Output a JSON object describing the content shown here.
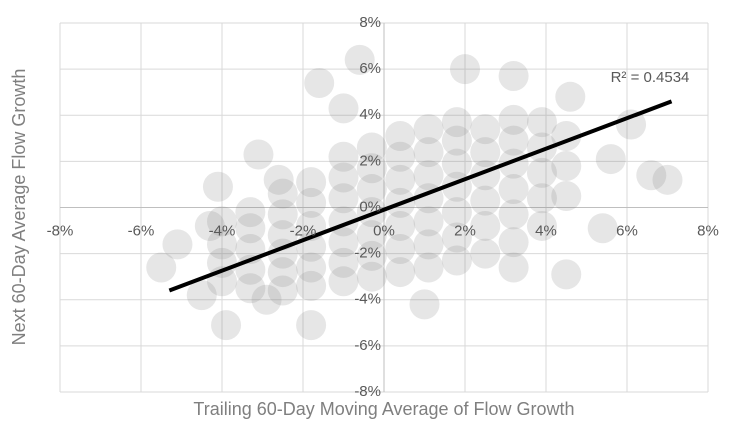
{
  "chart_data": {
    "type": "scatter",
    "x_label": "Trailing 60-Day Moving Average of Flow Growth",
    "y_label": "Next 60-Day Average Flow Growth",
    "annotation": "R² = 0.4534",
    "color": "#808080",
    "grid": true,
    "xlim": [
      -8,
      8
    ],
    "ylim": [
      -8,
      8
    ],
    "xticks": [
      {
        "value": -8,
        "label": "-8%"
      },
      {
        "value": -6,
        "label": "-6%"
      },
      {
        "value": -4,
        "label": "-4%"
      },
      {
        "value": -2,
        "label": "-2%"
      },
      {
        "value": 0,
        "label": "0%"
      },
      {
        "value": 2,
        "label": "2%"
      },
      {
        "value": 4,
        "label": "4%"
      },
      {
        "value": 6,
        "label": "6%"
      },
      {
        "value": 8,
        "label": "8%"
      }
    ],
    "yticks": [
      {
        "value": -8,
        "label": "-8%"
      },
      {
        "value": -6,
        "label": "-6%"
      },
      {
        "value": -4,
        "label": "-4%"
      },
      {
        "value": -2,
        "label": "-2%"
      },
      {
        "value": 0,
        "label": "0%"
      },
      {
        "value": 2,
        "label": "2%"
      },
      {
        "value": 4,
        "label": "4%"
      },
      {
        "value": 6,
        "label": "6%"
      },
      {
        "value": 8,
        "label": "8%"
      }
    ],
    "x": [
      -3.9,
      -5.5,
      -5.1,
      -4.3,
      -4.1,
      -3.1,
      -2.6,
      -1.6,
      -0.6,
      -1.0,
      2.0,
      3.2,
      4.6,
      5.6,
      6.6,
      5.4,
      4.5,
      3.2,
      1.0,
      -1.8,
      -2.9,
      -4.5,
      6.1,
      7.0,
      -4,
      -4,
      -4,
      -4,
      -3.3,
      -3.3,
      -3.3,
      -3.3,
      -3.3,
      -2.5,
      -2.5,
      -2.5,
      -2.5,
      -2.5,
      -2.5,
      -1.8,
      -1.8,
      -1.8,
      -1.8,
      -1.8,
      -1.8,
      -1.0,
      -1.0,
      -1.0,
      -1.0,
      -1.0,
      -1.0,
      -1.0,
      -0.3,
      -0.3,
      -0.3,
      -0.3,
      -0.3,
      -0.3,
      -0.3,
      0.4,
      0.4,
      0.4,
      0.4,
      0.4,
      0.4,
      0.4,
      1.1,
      1.1,
      1.1,
      1.1,
      1.1,
      1.1,
      1.1,
      1.8,
      1.8,
      1.8,
      1.8,
      1.8,
      1.8,
      1.8,
      2.5,
      2.5,
      2.5,
      2.5,
      2.5,
      2.5,
      3.2,
      3.2,
      3.2,
      3.2,
      3.2,
      3.2,
      3.9,
      3.9,
      3.9,
      3.9,
      3.9,
      4.5,
      4.5,
      4.5
    ],
    "y": [
      -5.1,
      -2.6,
      -1.6,
      -0.8,
      0.9,
      2.3,
      1.2,
      5.4,
      6.4,
      4.3,
      6.0,
      5.7,
      4.8,
      2.1,
      1.4,
      -0.9,
      -2.9,
      -2.6,
      -4.2,
      -5.1,
      -4.0,
      -3.8,
      3.6,
      1.2,
      -3.2,
      -2.4,
      -1.6,
      -0.6,
      -3.5,
      -2.7,
      -1.8,
      -0.9,
      -0.2,
      -3.6,
      -2.8,
      -2,
      -1.2,
      -0.3,
      0.6,
      -3.4,
      -2.6,
      -1.7,
      -0.8,
      0.2,
      1.1,
      -3.2,
      -2.4,
      -1.5,
      -0.6,
      0.4,
      1.3,
      2.2,
      -3,
      -2.1,
      -1.2,
      -0.2,
      0.8,
      1.7,
      2.6,
      -2.8,
      -1.8,
      -0.8,
      0.2,
      1.2,
      2.2,
      3.1,
      -2.6,
      -1.6,
      -0.6,
      0.4,
      1.4,
      2.4,
      3.4,
      -2.3,
      -1.3,
      -0.2,
      0.9,
      1.9,
      2.9,
      3.7,
      -2,
      -0.8,
      0.3,
      1.4,
      2.4,
      3.4,
      -1.5,
      -0.3,
      0.8,
      1.9,
      2.9,
      3.8,
      -0.8,
      0.4,
      1.5,
      2.6,
      3.7,
      0.5,
      1.8,
      3.1
    ],
    "trendline": {
      "color": "#000000",
      "x": [
        -5.3,
        7.1
      ],
      "y": [
        -3.6,
        4.6
      ]
    }
  }
}
